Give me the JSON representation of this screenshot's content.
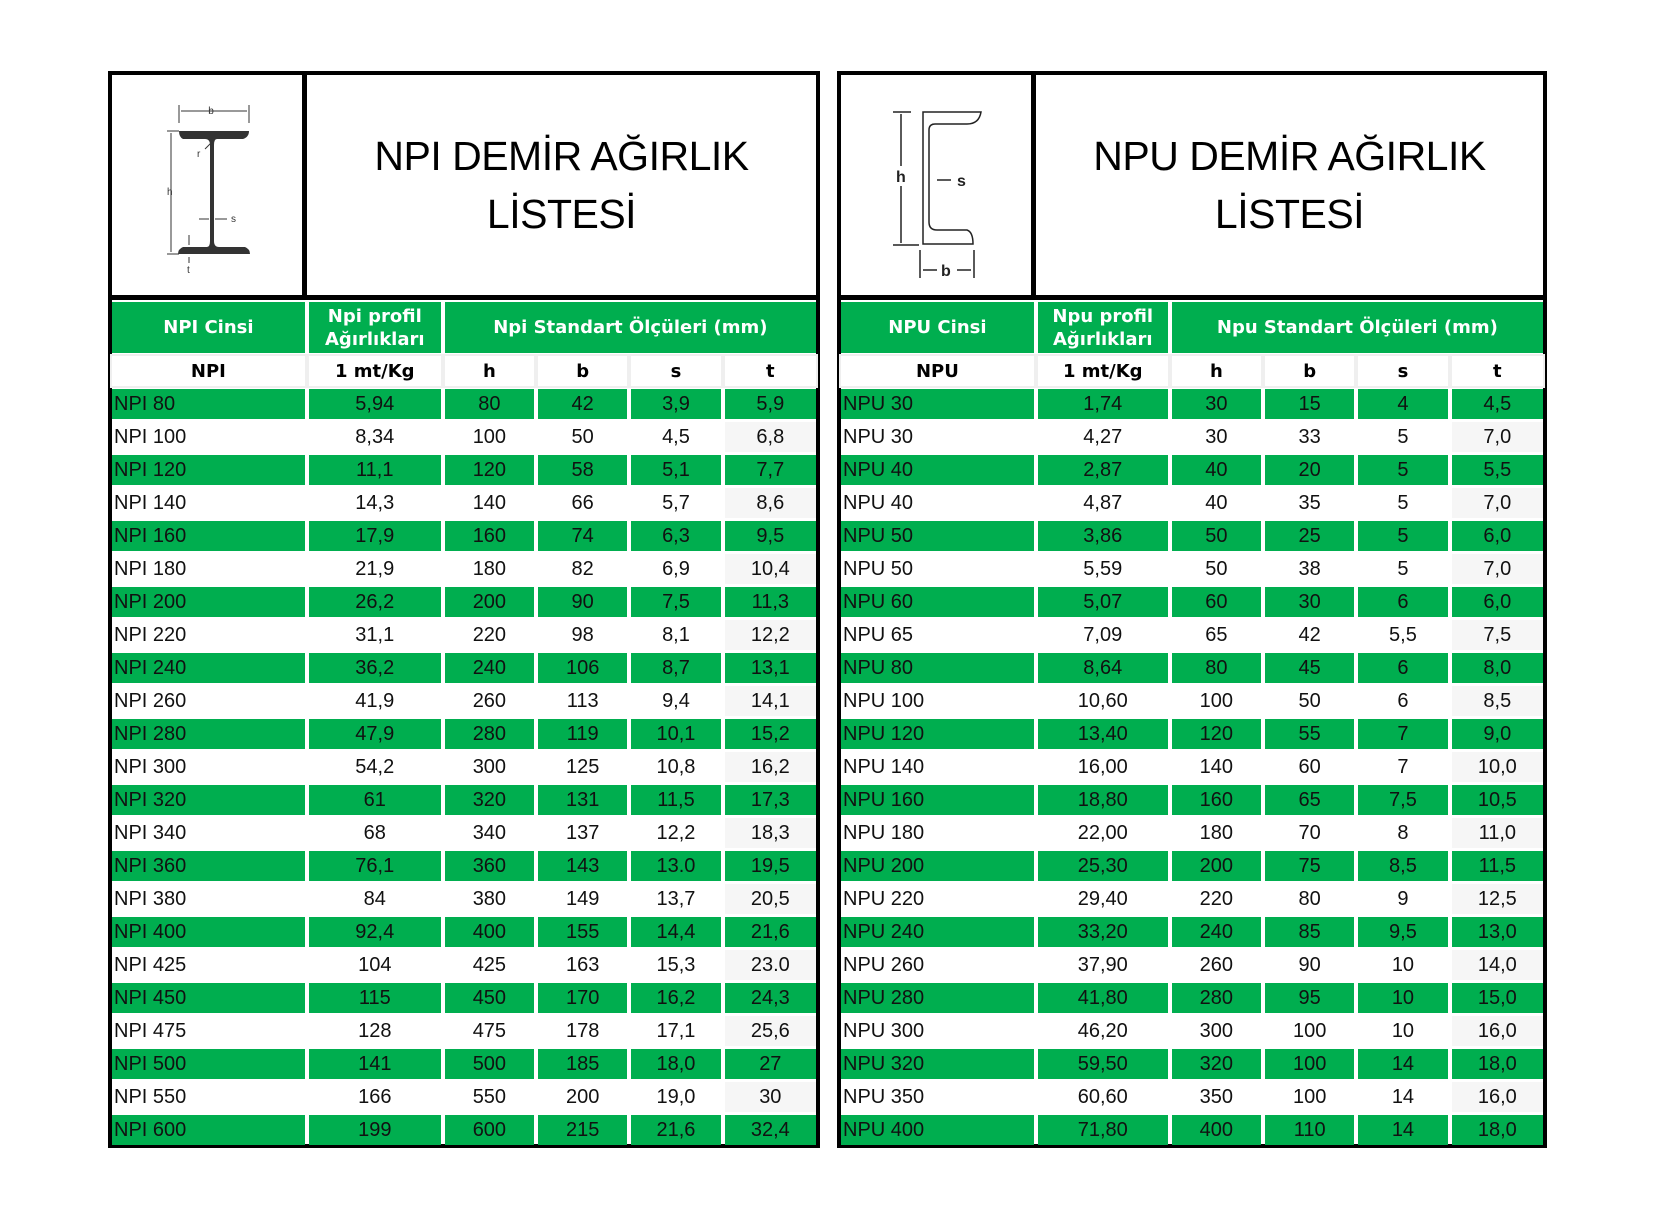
{
  "npi": {
    "title_line1": "NPI DEMİR AĞIRLIK",
    "title_line2": "LİSTESİ",
    "diagram_labels": {
      "b": "b",
      "h": "h",
      "s": "s",
      "t": "t",
      "r": "r"
    },
    "header": {
      "type": "NPI Cinsi",
      "weight_line1": "Npi profil",
      "weight_line2": "Ağırlıkları",
      "dims": "Npi Standart Ölçüleri (mm)"
    },
    "subheader": [
      "NPI",
      "1 mt/Kg",
      "h",
      "b",
      "s",
      "t"
    ],
    "rows": [
      [
        "NPI 80",
        "5,94",
        "80",
        "42",
        "3,9",
        "5,9"
      ],
      [
        "NPI 100",
        "8,34",
        "100",
        "50",
        "4,5",
        "6,8"
      ],
      [
        "NPI 120",
        "11,1",
        "120",
        "58",
        "5,1",
        "7,7"
      ],
      [
        "NPI 140",
        "14,3",
        "140",
        "66",
        "5,7",
        "8,6"
      ],
      [
        "NPI 160",
        "17,9",
        "160",
        "74",
        "6,3",
        "9,5"
      ],
      [
        "NPI 180",
        "21,9",
        "180",
        "82",
        "6,9",
        "10,4"
      ],
      [
        "NPI 200",
        "26,2",
        "200",
        "90",
        "7,5",
        "11,3"
      ],
      [
        "NPI 220",
        "31,1",
        "220",
        "98",
        "8,1",
        "12,2"
      ],
      [
        "NPI 240",
        "36,2",
        "240",
        "106",
        "8,7",
        "13,1"
      ],
      [
        "NPI 260",
        "41,9",
        "260",
        "113",
        "9,4",
        "14,1"
      ],
      [
        "NPI 280",
        "47,9",
        "280",
        "119",
        "10,1",
        "15,2"
      ],
      [
        "NPI 300",
        "54,2",
        "300",
        "125",
        "10,8",
        "16,2"
      ],
      [
        "NPI 320",
        "61",
        "320",
        "131",
        "11,5",
        "17,3"
      ],
      [
        "NPI 340",
        "68",
        "340",
        "137",
        "12,2",
        "18,3"
      ],
      [
        "NPI 360",
        "76,1",
        "360",
        "143",
        "13.0",
        "19,5"
      ],
      [
        "NPI 380",
        "84",
        "380",
        "149",
        "13,7",
        "20,5"
      ],
      [
        "NPI 400",
        "92,4",
        "400",
        "155",
        "14,4",
        "21,6"
      ],
      [
        "NPI 425",
        "104",
        "425",
        "163",
        "15,3",
        "23.0"
      ],
      [
        "NPI 450",
        "115",
        "450",
        "170",
        "16,2",
        "24,3"
      ],
      [
        "NPI 475",
        "128",
        "475",
        "178",
        "17,1",
        "25,6"
      ],
      [
        "NPI 500",
        "141",
        "500",
        "185",
        "18,0",
        "27"
      ],
      [
        "NPI 550",
        "166",
        "550",
        "200",
        "19,0",
        "30"
      ],
      [
        "NPI 600",
        "199",
        "600",
        "215",
        "21,6",
        "32,4"
      ]
    ]
  },
  "npu": {
    "title_line1": "NPU DEMİR AĞIRLIK",
    "title_line2": "LİSTESİ",
    "diagram_labels": {
      "h": "h",
      "s": "s",
      "b": "b"
    },
    "header": {
      "type": "NPU Cinsi",
      "weight_line1": "Npu profil",
      "weight_line2": "Ağırlıkları",
      "dims": "Npu Standart Ölçüleri (mm)"
    },
    "subheader": [
      "NPU",
      "1 mt/Kg",
      "h",
      "b",
      "s",
      "t"
    ],
    "rows": [
      [
        "NPU 30",
        "1,74",
        "30",
        "15",
        "4",
        "4,5"
      ],
      [
        "NPU 30",
        "4,27",
        "30",
        "33",
        "5",
        "7,0"
      ],
      [
        "NPU 40",
        "2,87",
        "40",
        "20",
        "5",
        "5,5"
      ],
      [
        "NPU 40",
        "4,87",
        "40",
        "35",
        "5",
        "7,0"
      ],
      [
        "NPU 50",
        "3,86",
        "50",
        "25",
        "5",
        "6,0"
      ],
      [
        "NPU 50",
        "5,59",
        "50",
        "38",
        "5",
        "7,0"
      ],
      [
        "NPU 60",
        "5,07",
        "60",
        "30",
        "6",
        "6,0"
      ],
      [
        "NPU 65",
        "7,09",
        "65",
        "42",
        "5,5",
        "7,5"
      ],
      [
        "NPU 80",
        "8,64",
        "80",
        "45",
        "6",
        "8,0"
      ],
      [
        "NPU 100",
        "10,60",
        "100",
        "50",
        "6",
        "8,5"
      ],
      [
        "NPU 120",
        "13,40",
        "120",
        "55",
        "7",
        "9,0"
      ],
      [
        "NPU 140",
        "16,00",
        "140",
        "60",
        "7",
        "10,0"
      ],
      [
        "NPU 160",
        "18,80",
        "160",
        "65",
        "7,5",
        "10,5"
      ],
      [
        "NPU 180",
        "22,00",
        "180",
        "70",
        "8",
        "11,0"
      ],
      [
        "NPU 200",
        "25,30",
        "200",
        "75",
        "8,5",
        "11,5"
      ],
      [
        "NPU 220",
        "29,40",
        "220",
        "80",
        "9",
        "12,5"
      ],
      [
        "NPU 240",
        "33,20",
        "240",
        "85",
        "9,5",
        "13,0"
      ],
      [
        "NPU 260",
        "37,90",
        "260",
        "90",
        "10",
        "14,0"
      ],
      [
        "NPU 280",
        "41,80",
        "280",
        "95",
        "10",
        "15,0"
      ],
      [
        "NPU 300",
        "46,20",
        "300",
        "100",
        "10",
        "16,0"
      ],
      [
        "NPU 320",
        "59,50",
        "320",
        "100",
        "14",
        "18,0"
      ],
      [
        "NPU 350",
        "60,60",
        "350",
        "100",
        "14",
        "16,0"
      ],
      [
        "NPU 400",
        "71,80",
        "400",
        "110",
        "14",
        "18,0"
      ]
    ]
  },
  "colors": {
    "green": "#00AE4F",
    "border": "#000000",
    "text": "#111111"
  }
}
